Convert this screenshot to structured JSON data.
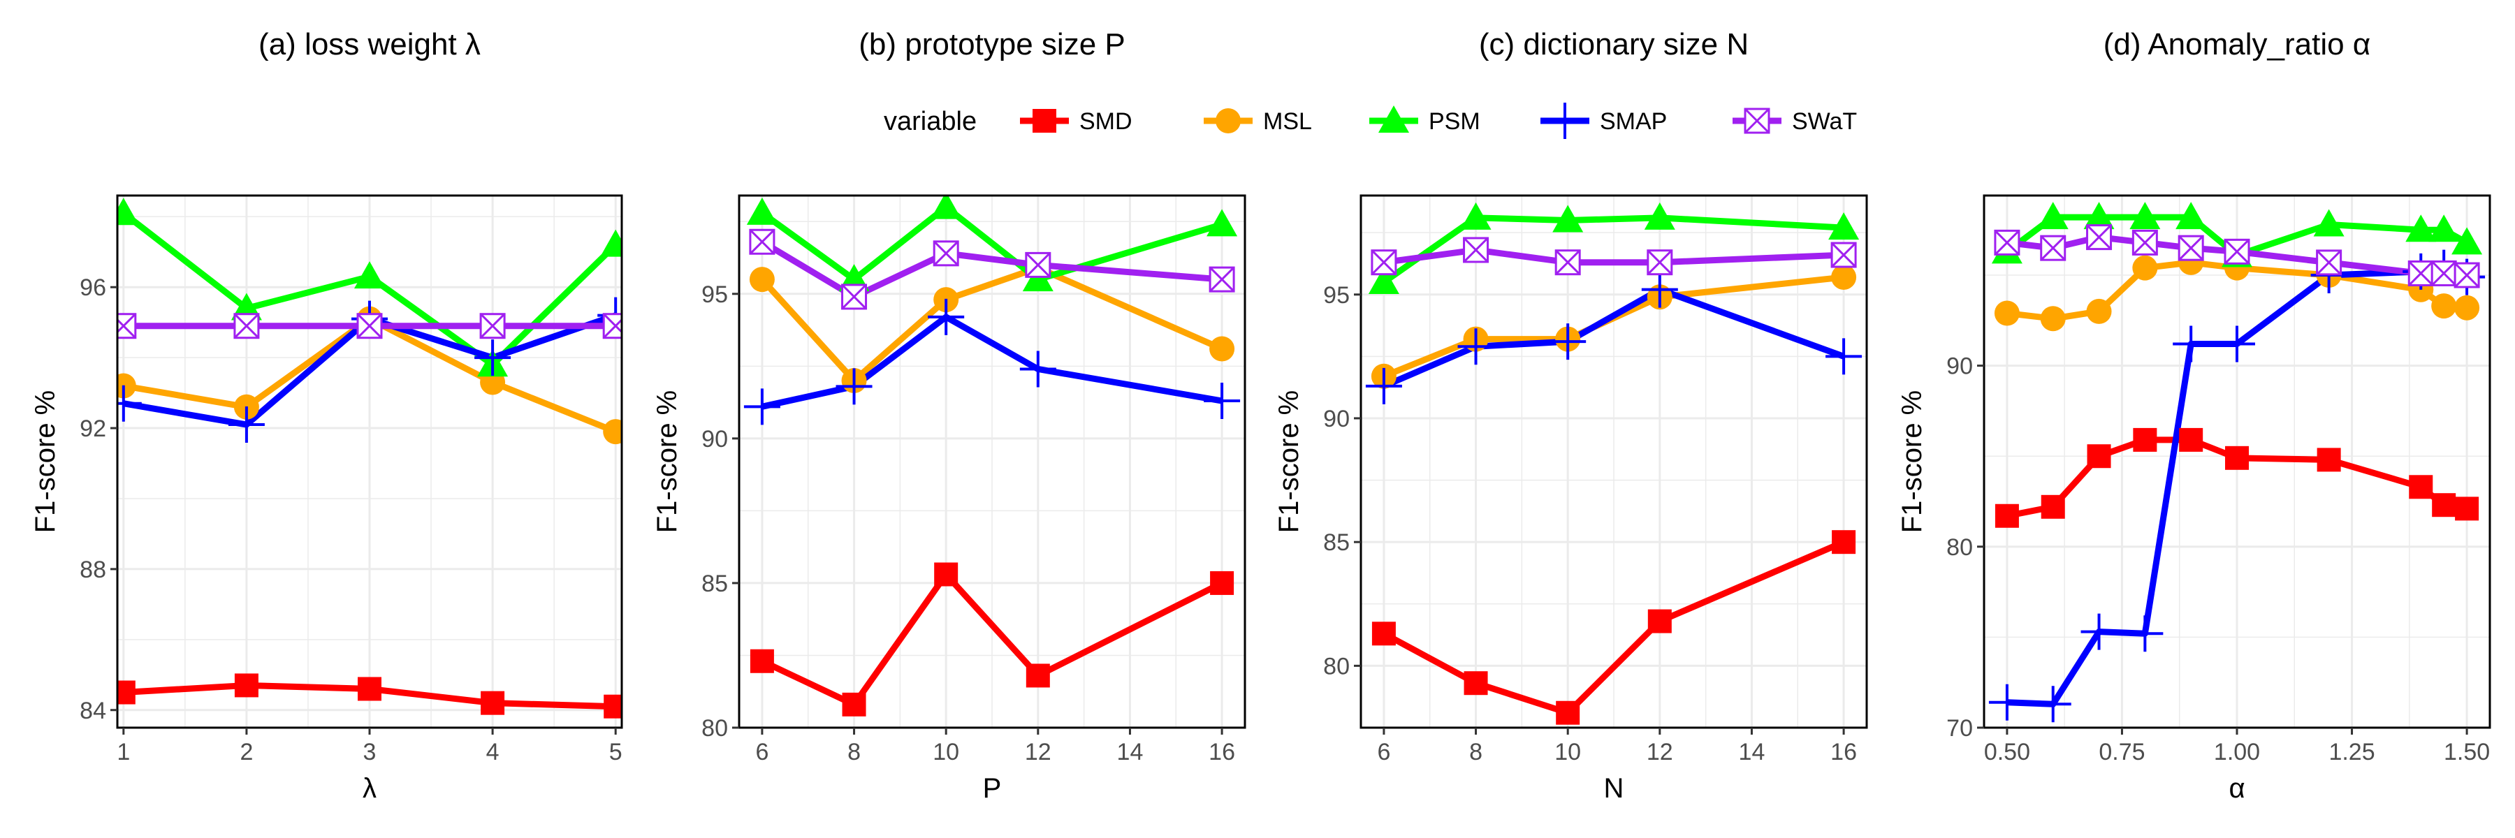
{
  "legend": {
    "title": "variable",
    "entries": [
      {
        "name": "SMD",
        "color": "#ff0000",
        "marker": "square"
      },
      {
        "name": "MSL",
        "color": "#ffa500",
        "marker": "circle"
      },
      {
        "name": "PSM",
        "color": "#00ff00",
        "marker": "triangle"
      },
      {
        "name": "SMAP",
        "color": "#0000ff",
        "marker": "plus"
      },
      {
        "name": "SWaT",
        "color": "#a020f0",
        "marker": "boxed-x"
      }
    ],
    "position": "top"
  },
  "chart_data": [
    {
      "type": "line",
      "title": "(a) loss weight λ",
      "xlabel": "λ",
      "ylabel": "F1-score %",
      "x": [
        1,
        2,
        3,
        4,
        5
      ],
      "xticks": [
        1,
        2,
        3,
        4,
        5
      ],
      "xtick_labels": [
        "1",
        "2",
        "3",
        "4",
        "5"
      ],
      "xlim": [
        0.95,
        5.05
      ],
      "yticks": [
        84,
        88,
        92,
        96
      ],
      "ylim": [
        83.5,
        98.6
      ],
      "grid": true,
      "series": [
        {
          "name": "SMD",
          "values": [
            84.5,
            84.7,
            84.6,
            84.2,
            84.1
          ]
        },
        {
          "name": "MSL",
          "values": [
            93.2,
            92.6,
            95.1,
            93.3,
            91.9
          ]
        },
        {
          "name": "PSM",
          "values": [
            98.1,
            95.4,
            96.3,
            93.8,
            97.2
          ]
        },
        {
          "name": "SMAP",
          "values": [
            92.7,
            92.1,
            95.1,
            94.0,
            95.2
          ]
        },
        {
          "name": "SWaT",
          "values": [
            94.9,
            94.9,
            94.9,
            94.9,
            94.9
          ]
        }
      ]
    },
    {
      "type": "line",
      "title": "(b) prototype size P",
      "xlabel": "P",
      "ylabel": "F1-score %",
      "x": [
        6,
        8,
        10,
        12,
        16
      ],
      "xticks": [
        6,
        8,
        10,
        12,
        14,
        16
      ],
      "xtick_labels": [
        "6",
        "8",
        "10",
        "12",
        "14",
        "16"
      ],
      "xlim": [
        5.5,
        16.5
      ],
      "yticks": [
        80,
        85,
        90,
        95
      ],
      "ylim": [
        80.0,
        98.4
      ],
      "grid": true,
      "series": [
        {
          "name": "SMD",
          "values": [
            82.3,
            80.8,
            85.3,
            81.8,
            85.0
          ]
        },
        {
          "name": "MSL",
          "values": [
            95.5,
            92.0,
            94.8,
            95.9,
            93.1
          ]
        },
        {
          "name": "PSM",
          "values": [
            97.8,
            95.5,
            98.0,
            95.5,
            97.4
          ]
        },
        {
          "name": "SMAP",
          "values": [
            91.1,
            91.8,
            94.2,
            92.4,
            91.3
          ]
        },
        {
          "name": "SWaT",
          "values": [
            96.8,
            94.9,
            96.4,
            96.0,
            95.5
          ]
        }
      ]
    },
    {
      "type": "line",
      "title": "(c) dictionary size N",
      "xlabel": "N",
      "ylabel": "F1-score %",
      "x": [
        6,
        8,
        10,
        12,
        16
      ],
      "xticks": [
        6,
        8,
        10,
        12,
        14,
        16
      ],
      "xtick_labels": [
        "6",
        "8",
        "10",
        "12",
        "14",
        "16"
      ],
      "xlim": [
        5.5,
        16.5
      ],
      "yticks": [
        80,
        85,
        90,
        95
      ],
      "ylim": [
        77.5,
        99.0
      ],
      "grid": true,
      "series": [
        {
          "name": "SMD",
          "values": [
            81.3,
            79.3,
            78.1,
            81.8,
            85.0
          ]
        },
        {
          "name": "MSL",
          "values": [
            91.7,
            93.2,
            93.2,
            94.9,
            95.7
          ]
        },
        {
          "name": "PSM",
          "values": [
            95.5,
            98.1,
            98.0,
            98.1,
            97.7
          ]
        },
        {
          "name": "SMAP",
          "values": [
            91.3,
            92.9,
            93.1,
            95.2,
            92.5
          ]
        },
        {
          "name": "SWaT",
          "values": [
            96.3,
            96.8,
            96.3,
            96.3,
            96.6
          ]
        }
      ]
    },
    {
      "type": "line",
      "title": "(d) Anomaly_ratio α",
      "xlabel": "α",
      "ylabel": "F1-score %",
      "x": [
        0.5,
        0.6,
        0.7,
        0.8,
        0.9,
        1.0,
        1.2,
        1.4,
        1.45,
        1.5
      ],
      "xticks": [
        0.5,
        0.75,
        1.0,
        1.25,
        1.5
      ],
      "xtick_labels": [
        "0.50",
        "0.75",
        "1.00",
        "1.25",
        "1.50"
      ],
      "xlim": [
        0.45,
        1.55
      ],
      "yticks": [
        70,
        80,
        90
      ],
      "ylim": [
        70.0,
        99.4
      ],
      "grid": true,
      "series": [
        {
          "name": "SMD",
          "values": [
            81.7,
            82.2,
            85.0,
            85.9,
            85.9,
            84.9,
            84.8,
            83.3,
            82.3,
            82.1
          ]
        },
        {
          "name": "MSL",
          "values": [
            92.9,
            92.6,
            93.0,
            95.4,
            95.7,
            95.4,
            95.0,
            94.2,
            93.3,
            93.2
          ]
        },
        {
          "name": "PSM",
          "values": [
            96.3,
            98.2,
            98.2,
            98.2,
            98.2,
            96.1,
            97.8,
            97.5,
            97.5,
            96.8
          ]
        },
        {
          "name": "SMAP",
          "values": [
            71.4,
            71.3,
            75.3,
            75.2,
            91.2,
            91.2,
            95.0,
            95.2,
            95.4,
            94.9
          ]
        },
        {
          "name": "SWaT",
          "values": [
            96.8,
            96.5,
            97.1,
            96.8,
            96.5,
            96.3,
            95.7,
            95.1,
            95.1,
            95.0
          ]
        }
      ]
    }
  ]
}
